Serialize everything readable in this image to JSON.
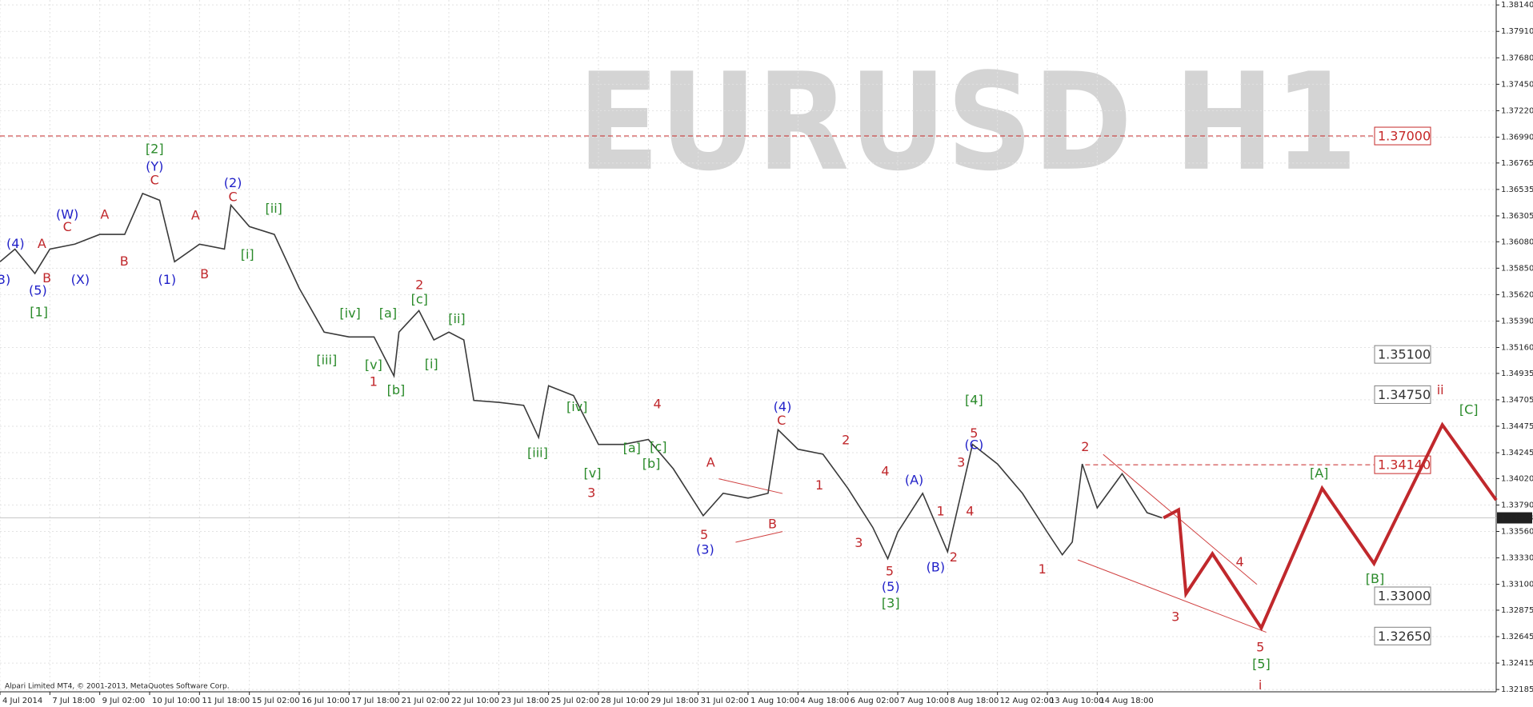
{
  "chart_data": {
    "type": "line",
    "watermark": "EURUSD H1",
    "footer": "Alpari Limited MT4, © 2001-2013, MetaQuotes Software Corp.",
    "xlim": [
      0,
      30
    ],
    "ylim": [
      1.32165,
      1.38183
    ],
    "grid": true,
    "xticks": [
      {
        "value": 0,
        "label": "4 Jul 2014"
      },
      {
        "value": 1,
        "label": "7 Jul 18:00"
      },
      {
        "value": 2,
        "label": "9 Jul 02:00"
      },
      {
        "value": 3,
        "label": "10 Jul 10:00"
      },
      {
        "value": 4,
        "label": "11 Jul 18:00"
      },
      {
        "value": 5,
        "label": "15 Jul 02:00"
      },
      {
        "value": 6,
        "label": "16 Jul 10:00"
      },
      {
        "value": 7,
        "label": "17 Jul 18:00"
      },
      {
        "value": 8,
        "label": "21 Jul 02:00"
      },
      {
        "value": 9,
        "label": "22 Jul 10:00"
      },
      {
        "value": 10,
        "label": "23 Jul 18:00"
      },
      {
        "value": 11,
        "label": "25 Jul 02:00"
      },
      {
        "value": 12,
        "label": "28 Jul 10:00"
      },
      {
        "value": 13,
        "label": "29 Jul 18:00"
      },
      {
        "value": 14,
        "label": "31 Jul 02:00"
      },
      {
        "value": 15,
        "label": "1 Aug 10:00"
      },
      {
        "value": 16,
        "label": "4 Aug 18:00"
      },
      {
        "value": 17,
        "label": "6 Aug 02:00"
      },
      {
        "value": 18,
        "label": "7 Aug 10:00"
      },
      {
        "value": 19,
        "label": "8 Aug 18:00"
      },
      {
        "value": 20,
        "label": "12 Aug 02:00"
      },
      {
        "value": 21,
        "label": "13 Aug 10:00"
      },
      {
        "value": 22,
        "label": "14 Aug 18:00"
      }
    ],
    "yticks": [
      {
        "value": 1.3814,
        "label": "1.38140"
      },
      {
        "value": 1.3791,
        "label": "1.37910"
      },
      {
        "value": 1.3768,
        "label": "1.37680"
      },
      {
        "value": 1.3745,
        "label": "1.37450"
      },
      {
        "value": 1.3722,
        "label": "1.37220"
      },
      {
        "value": 1.3699,
        "label": "1.36990"
      },
      {
        "value": 1.36765,
        "label": "1.36765"
      },
      {
        "value": 1.36535,
        "label": "1.36535"
      },
      {
        "value": 1.36305,
        "label": "1.36305"
      },
      {
        "value": 1.3608,
        "label": "1.36080"
      },
      {
        "value": 1.3585,
        "label": "1.35850"
      },
      {
        "value": 1.3562,
        "label": "1.35620"
      },
      {
        "value": 1.3539,
        "label": "1.35390"
      },
      {
        "value": 1.3516,
        "label": "1.35160"
      },
      {
        "value": 1.34935,
        "label": "1.34935"
      },
      {
        "value": 1.34705,
        "label": "1.34705"
      },
      {
        "value": 1.34475,
        "label": "1.34475"
      },
      {
        "value": 1.34245,
        "label": "1.34245"
      },
      {
        "value": 1.3402,
        "label": "1.34020"
      },
      {
        "value": 1.3379,
        "label": "1.33790"
      },
      {
        "value": 1.3356,
        "label": "1.33560"
      },
      {
        "value": 1.3333,
        "label": "1.33330"
      },
      {
        "value": 1.331,
        "label": "1.33100"
      },
      {
        "value": 1.32875,
        "label": "1.32875"
      },
      {
        "value": 1.32645,
        "label": "1.32645"
      },
      {
        "value": 1.32415,
        "label": "1.32415"
      },
      {
        "value": 1.32185,
        "label": "1.32185"
      }
    ],
    "current_price": {
      "value": 1.33678,
      "label": "1.33678"
    },
    "price": {
      "color": "#3a3a3a",
      "x": [
        0,
        0.3,
        0.7,
        1,
        1.5,
        2,
        2.5,
        2.86,
        3.2,
        3.5,
        4,
        4.5,
        4.63,
        5,
        5.5,
        6,
        6.5,
        7,
        7.5,
        7.9,
        8,
        8.4,
        8.7,
        9,
        9.3,
        9.5,
        10,
        10.5,
        10.8,
        11,
        11.5,
        12,
        12.5,
        13,
        13.5,
        14.1,
        14.5,
        15,
        15.4,
        15.6,
        16,
        16.5,
        17,
        17.5,
        17.8,
        18,
        18.5,
        19,
        19.5,
        20,
        20.5,
        21,
        21.3,
        21.5,
        21.7,
        22,
        22.5,
        23,
        23.3
      ],
      "values": [
        1.35906,
        1.36016,
        1.35804,
        1.36016,
        1.36059,
        1.36144,
        1.36144,
        1.365,
        1.36441,
        1.35906,
        1.36059,
        1.36016,
        1.36399,
        1.36212,
        1.36144,
        1.35676,
        1.35294,
        1.35252,
        1.35252,
        1.34912,
        1.35294,
        1.35481,
        1.35226,
        1.35294,
        1.35226,
        1.347,
        1.34683,
        1.34657,
        1.34377,
        1.34827,
        1.34742,
        1.34317,
        1.34317,
        1.3436,
        1.34105,
        1.33697,
        1.33892,
        1.3385,
        1.33892,
        1.34445,
        1.34275,
        1.34232,
        1.33935,
        1.33595,
        1.33323,
        1.33553,
        1.33892,
        1.33383,
        1.34317,
        1.34147,
        1.33892,
        1.33553,
        1.33357,
        1.33468,
        1.34147,
        1.33765,
        1.34062,
        1.33723,
        1.33678
      ]
    },
    "projection": {
      "color": "#c0282c",
      "x": [
        23.33,
        23.63,
        23.78,
        24.31,
        25.29,
        26.51,
        27.55,
        28.92,
        30
      ],
      "values": [
        1.33678,
        1.33748,
        1.33018,
        1.33366,
        1.3272,
        1.33935,
        1.33281,
        1.34487,
        1.33833
      ]
    },
    "trendlines": [
      {
        "color": "#d04040",
        "x": [
          22.12,
          25.2
        ],
        "y": [
          1.3423,
          1.331
        ]
      },
      {
        "color": "#d04040",
        "x": [
          21.61,
          25.39
        ],
        "y": [
          1.33313,
          1.32683
        ]
      },
      {
        "color": "#d04040",
        "x": [
          14.41,
          15.69
        ],
        "y": [
          1.34018,
          1.3389
        ]
      },
      {
        "color": "#d04040",
        "x": [
          14.75,
          15.69
        ],
        "y": [
          1.33466,
          1.33559
        ]
      }
    ],
    "levels": [
      {
        "value": 1.37,
        "label": "1.37000",
        "color": "#c62828",
        "line_x": [
          0,
          27.55
        ]
      },
      {
        "value": 1.351,
        "label": "1.35100",
        "color": "#808080"
      },
      {
        "value": 1.3475,
        "label": "1.34750",
        "color": "#808080"
      },
      {
        "value": 1.3414,
        "label": "1.34140",
        "color": "#c62828",
        "line_x": [
          21.76,
          27.55
        ]
      },
      {
        "value": 1.33,
        "label": "1.33000",
        "color": "#808080"
      },
      {
        "value": 1.3265,
        "label": "1.32650",
        "color": "#808080"
      }
    ],
    "wave_labels": [
      {
        "color": "#1f1fc8",
        "labels": [
          {
            "text": "(4)",
            "x": 0.31,
            "y": 1.36058
          },
          {
            "text": "3)",
            "x": 0.08,
            "y": 1.35743
          },
          {
            "text": "(5)",
            "x": 0.76,
            "y": 1.3565
          },
          {
            "text": "(W)",
            "x": 1.35,
            "y": 1.36313
          },
          {
            "text": "(X)",
            "x": 1.61,
            "y": 1.35743
          },
          {
            "text": "(Y)",
            "x": 3.1,
            "y": 1.36729
          },
          {
            "text": "(1)",
            "x": 3.35,
            "y": 1.35743
          },
          {
            "text": "(2)",
            "x": 4.67,
            "y": 1.36585
          },
          {
            "text": "(3)",
            "x": 14.14,
            "y": 1.33397
          },
          {
            "text": "(4)",
            "x": 15.69,
            "y": 1.34638
          },
          {
            "text": "(5)",
            "x": 17.86,
            "y": 1.33074
          },
          {
            "text": "(A)",
            "x": 18.33,
            "y": 1.34001
          },
          {
            "text": "(B)",
            "x": 18.76,
            "y": 1.33244
          },
          {
            "text": "(C)",
            "x": 19.53,
            "y": 1.34307
          }
        ]
      },
      {
        "color": "#c0282c",
        "labels": [
          {
            "text": "A",
            "x": 0.84,
            "y": 1.36058
          },
          {
            "text": "B",
            "x": 0.94,
            "y": 1.3576
          },
          {
            "text": "C",
            "x": 1.35,
            "y": 1.36202
          },
          {
            "text": "A",
            "x": 2.1,
            "y": 1.36313
          },
          {
            "text": "B",
            "x": 2.49,
            "y": 1.35905
          },
          {
            "text": "C",
            "x": 3.1,
            "y": 1.3661
          },
          {
            "text": "A",
            "x": 3.92,
            "y": 1.36304
          },
          {
            "text": "B",
            "x": 4.1,
            "y": 1.35794
          },
          {
            "text": "C",
            "x": 4.67,
            "y": 1.36466
          },
          {
            "text": "2",
            "x": 8.41,
            "y": 1.35701
          },
          {
            "text": "1",
            "x": 7.49,
            "y": 1.34859
          },
          {
            "text": "4",
            "x": 13.18,
            "y": 1.34664
          },
          {
            "text": "3",
            "x": 11.86,
            "y": 1.3389
          },
          {
            "text": "A",
            "x": 14.25,
            "y": 1.34154
          },
          {
            "text": "5",
            "x": 14.12,
            "y": 1.33525
          },
          {
            "text": "C",
            "x": 15.67,
            "y": 1.34519
          },
          {
            "text": "B",
            "x": 15.49,
            "y": 1.33618
          },
          {
            "text": "2",
            "x": 16.96,
            "y": 1.34349
          },
          {
            "text": "1",
            "x": 16.43,
            "y": 1.33958
          },
          {
            "text": "4",
            "x": 17.75,
            "y": 1.34077
          },
          {
            "text": "3",
            "x": 17.22,
            "y": 1.33457
          },
          {
            "text": "5",
            "x": 17.84,
            "y": 1.3321
          },
          {
            "text": "1",
            "x": 18.86,
            "y": 1.33729
          },
          {
            "text": "2",
            "x": 19.12,
            "y": 1.33329
          },
          {
            "text": "3",
            "x": 19.27,
            "y": 1.34154
          },
          {
            "text": "4",
            "x": 19.45,
            "y": 1.33729
          },
          {
            "text": "5",
            "x": 19.53,
            "y": 1.34409
          },
          {
            "text": "2",
            "x": 21.76,
            "y": 1.3429
          },
          {
            "text": "1",
            "x": 20.9,
            "y": 1.33227
          },
          {
            "text": "4",
            "x": 24.86,
            "y": 1.33287
          },
          {
            "text": "3",
            "x": 23.57,
            "y": 1.32811
          },
          {
            "text": "5",
            "x": 25.27,
            "y": 1.32547
          },
          {
            "text": "i",
            "x": 25.27,
            "y": 1.32216
          },
          {
            "text": "ii",
            "x": 28.88,
            "y": 1.34783
          }
        ]
      },
      {
        "color": "#2a8a2a",
        "labels": [
          {
            "text": "[1]",
            "x": 0.78,
            "y": 1.35463
          },
          {
            "text": "[2]",
            "x": 3.1,
            "y": 1.36882
          },
          {
            "text": "[ii]",
            "x": 5.49,
            "y": 1.36364
          },
          {
            "text": "[i]",
            "x": 4.96,
            "y": 1.35964
          },
          {
            "text": "[iii]",
            "x": 6.55,
            "y": 1.35046
          },
          {
            "text": "[iv]",
            "x": 7.02,
            "y": 1.35454
          },
          {
            "text": "[v]",
            "x": 7.49,
            "y": 1.35004
          },
          {
            "text": "[a]",
            "x": 7.78,
            "y": 1.35454
          },
          {
            "text": "[b]",
            "x": 7.94,
            "y": 1.34783
          },
          {
            "text": "[c]",
            "x": 8.41,
            "y": 1.35573
          },
          {
            "text": "[i]",
            "x": 8.65,
            "y": 1.35012
          },
          {
            "text": "[ii]",
            "x": 9.16,
            "y": 1.35403
          },
          {
            "text": "[iii]",
            "x": 10.78,
            "y": 1.34239
          },
          {
            "text": "[iv]",
            "x": 11.57,
            "y": 1.34638
          },
          {
            "text": "[v]",
            "x": 11.88,
            "y": 1.3406
          },
          {
            "text": "[a]",
            "x": 12.67,
            "y": 1.34281
          },
          {
            "text": "[b]",
            "x": 13.06,
            "y": 1.34145
          },
          {
            "text": "[c]",
            "x": 13.2,
            "y": 1.3429
          },
          {
            "text": "[3]",
            "x": 17.86,
            "y": 1.3293
          },
          {
            "text": "[4]",
            "x": 19.53,
            "y": 1.34698
          },
          {
            "text": "[A]",
            "x": 26.45,
            "y": 1.3406
          },
          {
            "text": "[B]",
            "x": 27.57,
            "y": 1.33142
          },
          {
            "text": "[C]",
            "x": 29.45,
            "y": 1.34613
          },
          {
            "text": "[5]",
            "x": 25.29,
            "y": 1.32403
          }
        ]
      }
    ]
  }
}
